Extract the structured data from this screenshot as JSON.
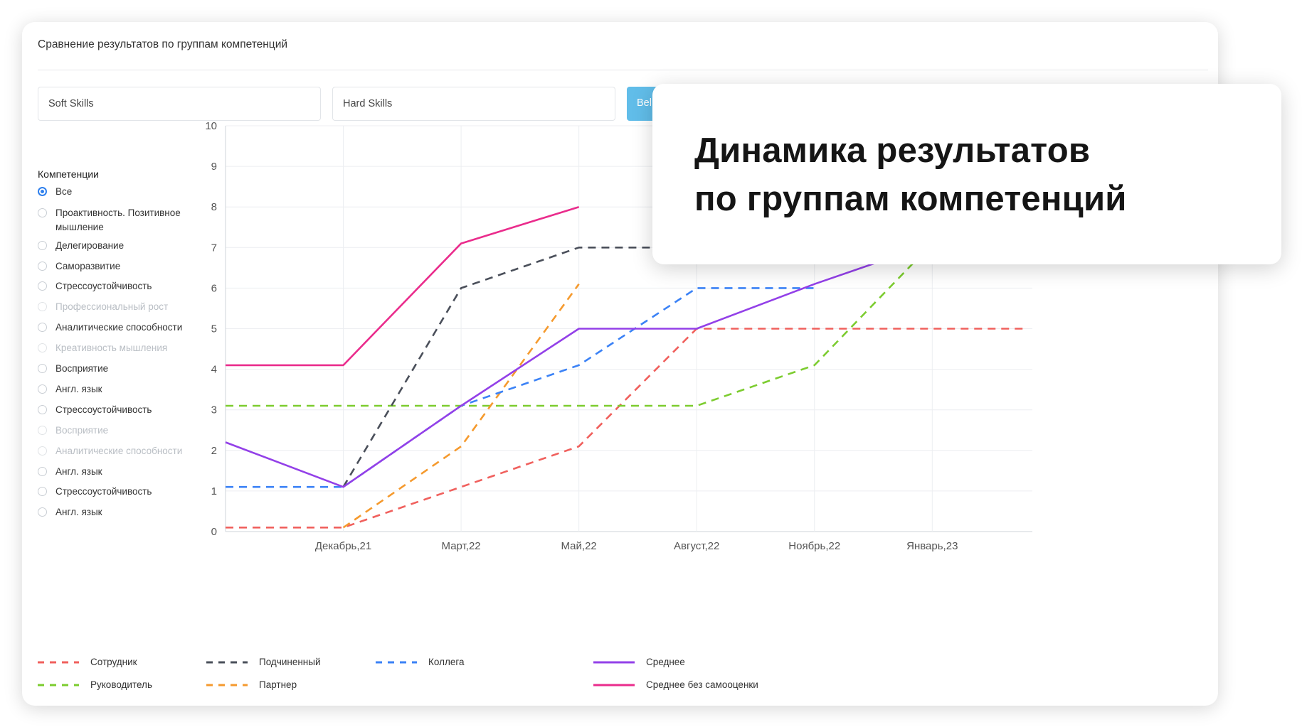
{
  "card": {
    "title": "Сравнение результатов по группам компетенций",
    "select_soft": "Soft Skills",
    "select_hard": "Hard Skills",
    "button_label": "Bel"
  },
  "filters": {
    "heading": "Компетенции",
    "items": [
      {
        "label": "Все",
        "checked": true,
        "disabled": false
      },
      {
        "label": "Проактивность. Позитивное мышление",
        "checked": false,
        "disabled": false
      },
      {
        "label": "Делегирование",
        "checked": false,
        "disabled": false
      },
      {
        "label": "Саморазвитие",
        "checked": false,
        "disabled": false
      },
      {
        "label": "Стрессоустойчивость",
        "checked": false,
        "disabled": false
      },
      {
        "label": "Профессиональный рост",
        "checked": false,
        "disabled": true
      },
      {
        "label": "Аналитические способности",
        "checked": false,
        "disabled": false
      },
      {
        "label": "Креативность мышления",
        "checked": false,
        "disabled": true
      },
      {
        "label": "Восприятие",
        "checked": false,
        "disabled": false
      },
      {
        "label": "Англ. язык",
        "checked": false,
        "disabled": false
      },
      {
        "label": "Стрессоустойчивость",
        "checked": false,
        "disabled": false
      },
      {
        "label": "Восприятие",
        "checked": false,
        "disabled": true
      },
      {
        "label": "Аналитические способности",
        "checked": false,
        "disabled": true
      },
      {
        "label": "Англ. язык",
        "checked": false,
        "disabled": false
      },
      {
        "label": "Стрессоустойчивость",
        "checked": false,
        "disabled": false
      },
      {
        "label": "Англ. язык",
        "checked": false,
        "disabled": false
      }
    ]
  },
  "overlay": {
    "line1": "Динамика результатов",
    "line2": "по группам компетенций"
  },
  "chart_data": {
    "type": "line",
    "x": [
      0,
      1,
      2,
      3,
      4,
      5,
      6,
      6.8
    ],
    "x_tick_labels": [
      "Декабрь,21",
      "Март,22",
      "Май,22",
      "Август,22",
      "Ноябрь,22",
      "Январь,23"
    ],
    "x_tick_positions": [
      1,
      2,
      3,
      4,
      5,
      6
    ],
    "xlim": [
      0,
      6.85
    ],
    "ylim": [
      0,
      10
    ],
    "y_ticks": [
      0,
      1,
      2,
      3,
      4,
      5,
      6,
      7,
      8,
      9,
      10
    ],
    "grid": true,
    "legend_position": "bottom-left",
    "series": [
      {
        "name": "Сотрудник",
        "color": "#f0605d",
        "dash": true,
        "values": [
          0.1,
          0.1,
          1.1,
          2.1,
          5.0,
          5.0,
          5.0,
          5.0
        ]
      },
      {
        "name": "Руководитель",
        "color": "#7ccc2f",
        "dash": true,
        "values": [
          3.1,
          3.1,
          3.1,
          3.1,
          3.1,
          4.1,
          7.1,
          null
        ]
      },
      {
        "name": "Подчиненный",
        "color": "#4a4f5a",
        "dash": true,
        "values": [
          null,
          1.1,
          6.0,
          7.0,
          7.0,
          7.0,
          null,
          null
        ]
      },
      {
        "name": "Партнер",
        "color": "#f59a2e",
        "dash": true,
        "values": [
          null,
          0.1,
          2.1,
          6.1,
          null,
          null,
          null,
          null
        ]
      },
      {
        "name": "Коллега",
        "color": "#3b82f6",
        "dash": true,
        "values": [
          1.1,
          1.1,
          3.1,
          4.1,
          6.0,
          6.0,
          null,
          null
        ]
      },
      {
        "name": "Среднее",
        "color": "#9340e8",
        "dash": false,
        "values": [
          2.2,
          1.1,
          3.1,
          5.0,
          5.0,
          6.1,
          7.1,
          null
        ]
      },
      {
        "name": "Среднее без самооценки",
        "color": "#ea2c8c",
        "dash": false,
        "values": [
          4.1,
          4.1,
          7.1,
          8.0,
          null,
          null,
          null,
          null
        ]
      }
    ]
  }
}
